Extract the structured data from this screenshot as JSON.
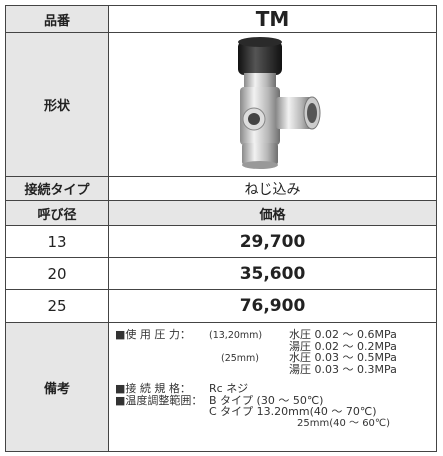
{
  "table": {
    "rows": [
      {
        "label": "品番",
        "value": "TM"
      },
      {
        "label": "形状"
      },
      {
        "label": "接続タイプ",
        "value": "ねじ込み"
      },
      {
        "label": "呼び径",
        "value": "価格"
      },
      {
        "label": "13",
        "value": "29,700"
      },
      {
        "label": "20",
        "value": "35,600"
      },
      {
        "label": "25",
        "value": "76,900"
      },
      {
        "label": "備考",
        "notes": [
          {
            "head": "■使 用 圧 力：",
            "sub": "(13,20mm)",
            "text": "水圧 0.02 ～ 0.6MPa"
          },
          {
            "text": "湯圧 0.02 ～ 0.2MPa"
          },
          {
            "sub": "(25mm)",
            "text": "水圧 0.03 ～ 0.5MPa"
          },
          {
            "text": "湯圧 0.03 ～ 0.3MPa"
          },
          {
            "head": "■接 続 規 格：",
            "text": "Rc ネジ"
          },
          {
            "head": "■温度調整範囲：",
            "text": "B タイプ (30 ～ 50℃)"
          },
          {
            "text": "C タイプ 13.20mm(40 ～ 70℃)"
          },
          {
            "text": "25mm(40 ～ 60℃)"
          }
        ]
      }
    ]
  }
}
